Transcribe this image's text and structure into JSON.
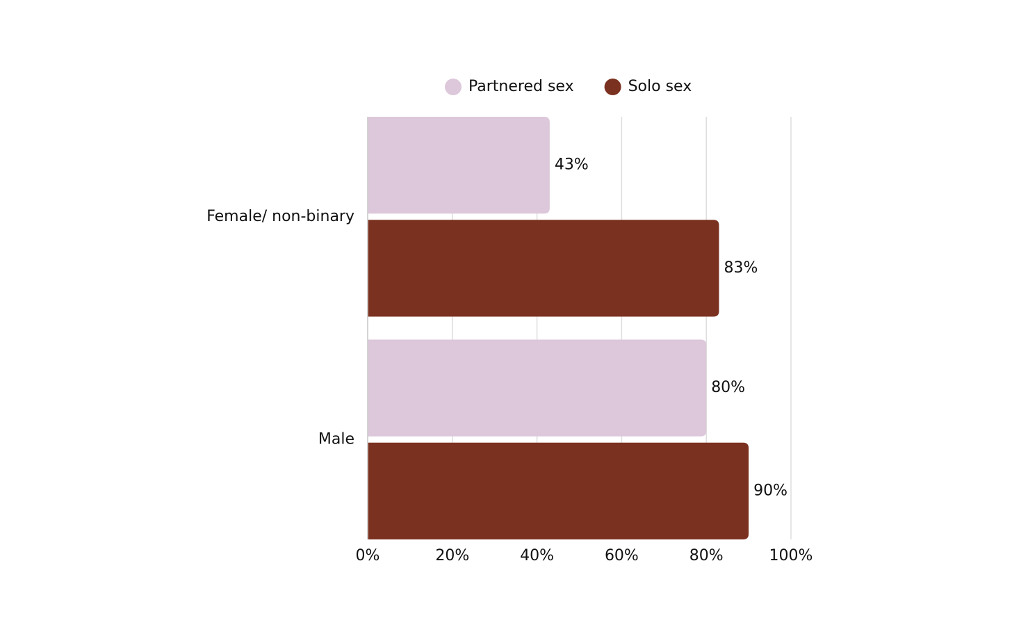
{
  "chart_data": {
    "type": "bar",
    "orientation": "horizontal",
    "categories": [
      "Female/ non-binary",
      "Male"
    ],
    "series": [
      {
        "name": "Partnered sex",
        "color": "#dcc8da",
        "values": [
          43,
          80
        ],
        "value_labels": [
          "43%",
          "80%"
        ]
      },
      {
        "name": "Solo sex",
        "color": "#7b3120",
        "values": [
          83,
          90
        ],
        "value_labels": [
          "83%",
          "90%"
        ]
      }
    ],
    "xlim": [
      0,
      100
    ],
    "xticks": [
      {
        "value": 0,
        "label": "0%"
      },
      {
        "value": 20,
        "label": "20%"
      },
      {
        "value": 40,
        "label": "40%"
      },
      {
        "value": 60,
        "label": "60%"
      },
      {
        "value": 80,
        "label": "80%"
      },
      {
        "value": 100,
        "label": "100%"
      }
    ],
    "grid": true,
    "legend": "top"
  }
}
